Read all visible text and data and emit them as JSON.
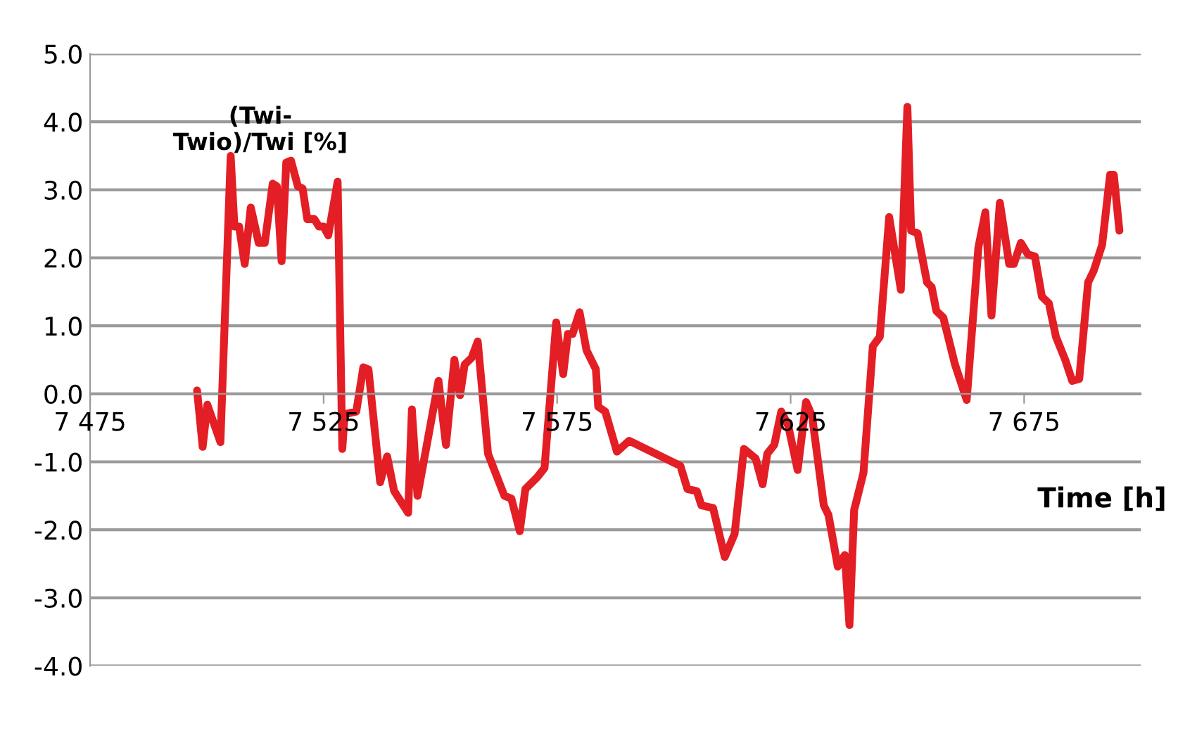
{
  "chart_data": {
    "type": "line",
    "xlabel": "Time [h]",
    "ylabel": "(Twi-\nTwio)/Twi [%]",
    "xlim": [
      7475,
      7700
    ],
    "ylim": [
      -4,
      5
    ],
    "xticks": [
      {
        "value": 7475,
        "label": "7 475"
      },
      {
        "value": 7525,
        "label": "7 525"
      },
      {
        "value": 7575,
        "label": "7 575"
      },
      {
        "value": 7625,
        "label": "7 625"
      },
      {
        "value": 7675,
        "label": "7 675"
      }
    ],
    "yticks": [
      {
        "value": -4,
        "label": "-4.0"
      },
      {
        "value": -3,
        "label": "-3.0"
      },
      {
        "value": -2,
        "label": "-2.0"
      },
      {
        "value": -1,
        "label": "-1.0"
      },
      {
        "value": 0,
        "label": "0.0"
      },
      {
        "value": 1,
        "label": "1.0"
      },
      {
        "value": 2,
        "label": "2.0"
      },
      {
        "value": 3,
        "label": "3.0"
      },
      {
        "value": 4,
        "label": "4.0"
      },
      {
        "value": 5,
        "label": "5.0"
      }
    ],
    "grid": "y",
    "legend": false,
    "marker": "none",
    "line_style": "solid",
    "series": [
      {
        "color": "#e31e24",
        "x": [
          7497.9,
          7499.1,
          7500.1,
          7502.9,
          7505.1,
          7505.9,
          7506.9,
          7508.1,
          7509.4,
          7511.1,
          7512.4,
          7514.1,
          7515.0,
          7516.0,
          7517.0,
          7518.0,
          7519.5,
          7520.5,
          7521.5,
          7523.0,
          7524.0,
          7525.0,
          7526.0,
          7528.0,
          7529.0,
          7529.5,
          7532.0,
          7533.5,
          7534.6,
          7537.1,
          7538.6,
          7540.1,
          7543.1,
          7543.9,
          7545.1,
          7549.6,
          7551.2,
          7553.0,
          7554.2,
          7555.2,
          7556.7,
          7558.0,
          7560.2,
          7563.7,
          7565.2,
          7567.0,
          7568.2,
          7570.7,
          7572.3,
          7574.8,
          7576.3,
          7577.3,
          7578.3,
          7579.8,
          7581.3,
          7583.3,
          7583.8,
          7585.3,
          7587.8,
          7590.4,
          7601.4,
          7602.9,
          7604.9,
          7605.9,
          7608.4,
          7610.9,
          7613.0,
          7615.0,
          7617.5,
          7619.0,
          7620.0,
          7621.5,
          7623.0,
          7624.5,
          7626.5,
          7628.3,
          7629.6,
          7632.1,
          7633.1,
          7635.1,
          7636.6,
          7637.6,
          7638.6,
          7640.6,
          7642.6,
          7644.1,
          7646.1,
          7648.6,
          7650.0,
          7650.8,
          7652.2,
          7654.2,
          7655.2,
          7656.2,
          7657.7,
          7660.2,
          7662.7,
          7665.2,
          7666.7,
          7668.0,
          7669.8,
          7671.8,
          7672.8,
          7674.3,
          7675.8,
          7677.3,
          7678.8,
          7680.3,
          7681.8,
          7683.8,
          7685.3,
          7686.8,
          7688.7,
          7689.9,
          7691.7,
          7693.4,
          7694.2,
          7695.4
        ],
        "values": [
          0.05,
          -0.78,
          -0.16,
          -0.71,
          3.5,
          2.46,
          2.46,
          1.91,
          2.74,
          2.22,
          2.22,
          3.09,
          3.05,
          1.95,
          3.4,
          3.43,
          3.05,
          3.02,
          2.57,
          2.57,
          2.46,
          2.46,
          2.33,
          3.12,
          -0.81,
          -0.3,
          -0.26,
          0.39,
          0.36,
          -1.3,
          -0.92,
          -1.43,
          -1.75,
          -0.23,
          -1.5,
          0.19,
          -0.75,
          0.5,
          -0.02,
          0.43,
          0.53,
          0.77,
          -0.88,
          -1.5,
          -1.54,
          -2.02,
          -1.4,
          -1.23,
          -1.09,
          1.05,
          0.29,
          0.88,
          0.88,
          1.2,
          0.64,
          0.36,
          -0.19,
          -0.26,
          -0.85,
          -0.69,
          -1.06,
          -1.4,
          -1.43,
          -1.64,
          -1.68,
          -2.4,
          -2.06,
          -0.81,
          -0.95,
          -1.33,
          -0.88,
          -0.75,
          -0.26,
          -0.47,
          -1.12,
          -0.12,
          -0.33,
          -1.64,
          -1.78,
          -2.54,
          -2.37,
          -3.4,
          -1.71,
          -1.16,
          0.7,
          0.84,
          2.6,
          1.53,
          4.22,
          2.4,
          2.36,
          1.64,
          1.57,
          1.22,
          1.12,
          0.43,
          -0.09,
          2.15,
          2.67,
          1.15,
          2.81,
          1.91,
          1.91,
          2.22,
          2.05,
          2.02,
          1.43,
          1.33,
          0.84,
          0.5,
          0.19,
          0.22,
          1.64,
          1.81,
          2.19,
          3.22,
          3.22,
          2.4
        ]
      }
    ]
  }
}
